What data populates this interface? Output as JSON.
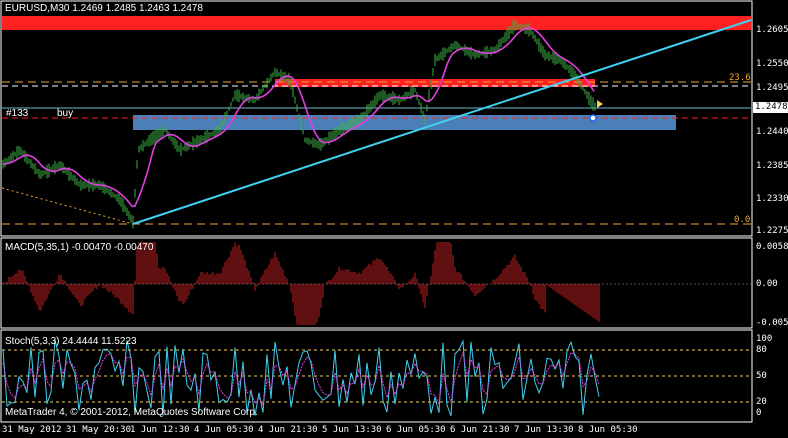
{
  "main": {
    "symbol_header": "EURUSD,M30  1.2469 1.2485 1.2463 1.2478",
    "order_label": "#133",
    "order_type": "buy",
    "fib_upper": "23.6",
    "fib_lower": "0.0",
    "price_ticks": [
      "1.2605",
      "1.2550",
      "1.2495",
      "1.2440",
      "1.2385",
      "1.2330",
      "1.2275"
    ],
    "current_price": "1.2478"
  },
  "macd": {
    "header": "MACD(5,35,1) -0.00470 -0.00470",
    "ticks": [
      "0.00586",
      "0.00",
      "-0.00564"
    ]
  },
  "stoch": {
    "header": "Stoch(5,3,3) 24.4444 11.5223",
    "ticks": [
      "100",
      "80",
      "50",
      "20",
      "0"
    ]
  },
  "footer": {
    "copyright": "MetaTrader 4, © 2001-2012, MetaQuotes Software Corp."
  },
  "time_axis": [
    "31 May 2012",
    "31 May 20:30",
    "1 Jun 12:30",
    "4 Jun 05:30",
    "4 Jun 21:30",
    "5 Jun 13:30",
    "6 Jun 05:30",
    "6 Jun 21:30",
    "7 Jun 13:30",
    "8 Jun 05:30"
  ],
  "colors": {
    "background": "#000000",
    "bullish_bar": "#3cb043",
    "moving_average": "#e040e0",
    "trendline": "#40d0f0",
    "resistance_zone": "#ff2020",
    "support_zone": "#4a7fb8",
    "fib_line": "#f0a830",
    "macd_hist": "#c02020",
    "stoch_main": "#40d0f0",
    "stoch_signal": "#e040e0"
  }
}
